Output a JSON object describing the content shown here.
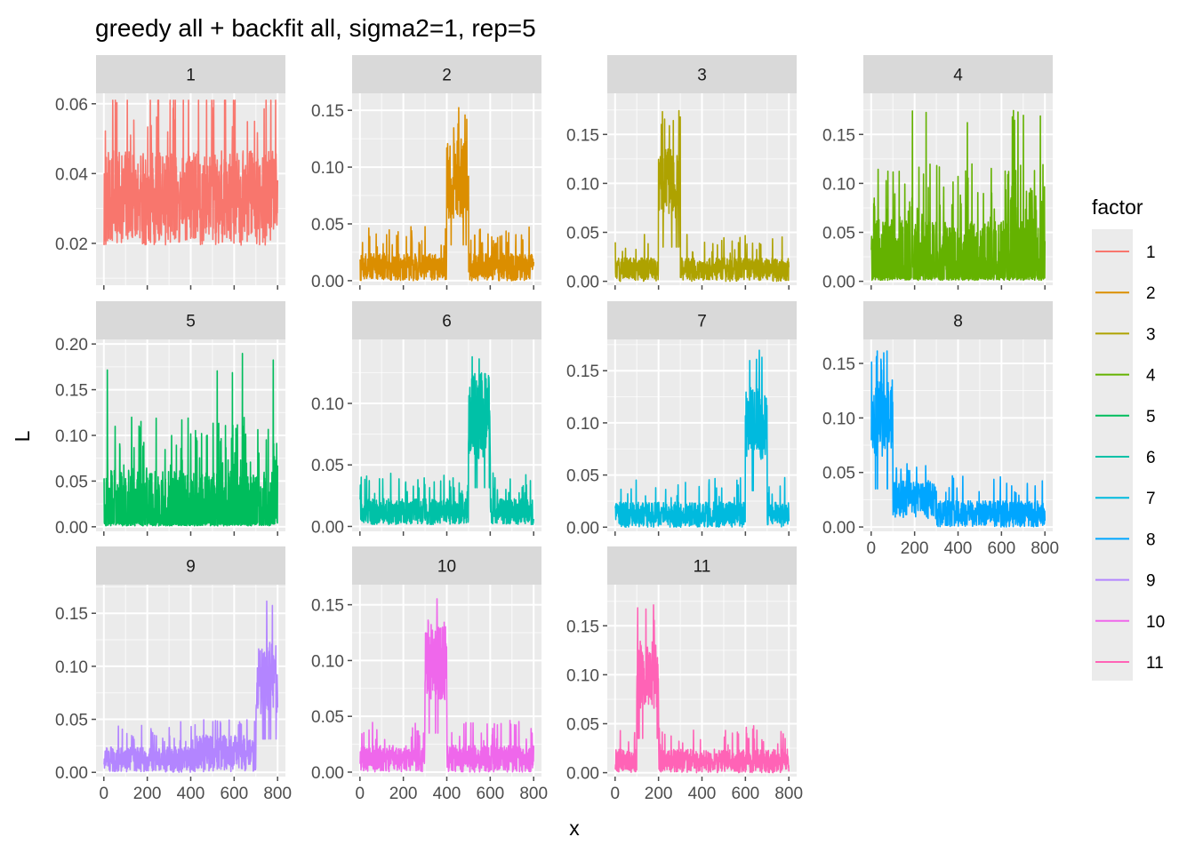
{
  "chart_data": {
    "type": "line",
    "title": "greedy all + backfit all, sigma2=1, rep=5",
    "xlabel": "x",
    "ylabel": "L",
    "x_range": [
      0,
      800
    ],
    "x_ticks": [
      "0",
      "200",
      "400",
      "600",
      "800"
    ],
    "grid": true,
    "legend": {
      "title": "factor",
      "position": "right"
    },
    "panels": [
      {
        "name": "1",
        "color": "#F8766D",
        "ylim": [
          0.008,
          0.063
        ],
        "y_ticks": [
          0.02,
          0.04,
          0.06
        ],
        "y_tick_labels": [
          "0.02",
          "0.04",
          "0.06"
        ],
        "baseline": 0.033,
        "noise": 0.009,
        "min": 0.008,
        "max": 0.061,
        "blocks": [],
        "spikes": false
      },
      {
        "name": "2",
        "color": "#DB8E00",
        "ylim": [
          -0.004,
          0.165
        ],
        "y_ticks": [
          0,
          0.05,
          0.1,
          0.15
        ],
        "y_tick_labels": [
          "0.00",
          "0.05",
          "0.10",
          "0.15"
        ],
        "baseline": 0.012,
        "noise": 0.008,
        "min": 0,
        "max": 0.157,
        "blocks": [
          {
            "start": 400,
            "end": 500,
            "level": 0.09,
            "max": 0.157
          }
        ],
        "spikes": false
      },
      {
        "name": "3",
        "color": "#AEA200",
        "ylim": [
          -0.004,
          0.192
        ],
        "y_ticks": [
          0,
          0.05,
          0.1,
          0.15
        ],
        "y_tick_labels": [
          "0.00",
          "0.05",
          "0.10",
          "0.15"
        ],
        "baseline": 0.012,
        "noise": 0.008,
        "min": 0,
        "max": 0.18,
        "blocks": [
          {
            "start": 200,
            "end": 300,
            "level": 0.1,
            "max": 0.18
          }
        ],
        "spikes": false
      },
      {
        "name": "4",
        "color": "#64B200",
        "ylim": [
          -0.004,
          0.192
        ],
        "y_ticks": [
          0,
          0.05,
          0.1,
          0.15
        ],
        "y_tick_labels": [
          "0.00",
          "0.05",
          "0.10",
          "0.15"
        ],
        "baseline": 0.02,
        "noise": 0.01,
        "min": 0,
        "max": 0.178,
        "blocks": [],
        "spikes": true
      },
      {
        "name": "5",
        "color": "#00BD5C",
        "ylim": [
          -0.005,
          0.205
        ],
        "y_ticks": [
          0,
          0.05,
          0.1,
          0.15,
          0.2
        ],
        "y_tick_labels": [
          "0.00",
          "0.05",
          "0.10",
          "0.15",
          "0.20"
        ],
        "baseline": 0.02,
        "noise": 0.01,
        "min": 0,
        "max": 0.195,
        "blocks": [],
        "spikes": true
      },
      {
        "name": "6",
        "color": "#00C1A7",
        "ylim": [
          -0.004,
          0.152
        ],
        "y_ticks": [
          0,
          0.05,
          0.1
        ],
        "y_tick_labels": [
          "0.00",
          "0.05",
          "0.10"
        ],
        "baseline": 0.012,
        "noise": 0.007,
        "min": 0,
        "max": 0.138,
        "blocks": [
          {
            "start": 500,
            "end": 600,
            "level": 0.09,
            "max": 0.138
          }
        ],
        "spikes": false
      },
      {
        "name": "7",
        "color": "#00BADE",
        "ylim": [
          -0.004,
          0.18
        ],
        "y_ticks": [
          0,
          0.05,
          0.1,
          0.15
        ],
        "y_tick_labels": [
          "0.00",
          "0.05",
          "0.10",
          "0.15"
        ],
        "baseline": 0.012,
        "noise": 0.008,
        "min": 0,
        "max": 0.17,
        "blocks": [
          {
            "start": 600,
            "end": 700,
            "level": 0.1,
            "max": 0.17
          }
        ],
        "spikes": false
      },
      {
        "name": "8",
        "color": "#00A6FF",
        "ylim": [
          -0.004,
          0.172
        ],
        "y_ticks": [
          0,
          0.05,
          0.1,
          0.15
        ],
        "y_tick_labels": [
          "0.00",
          "0.05",
          "0.10",
          "0.15"
        ],
        "baseline": 0.012,
        "noise": 0.008,
        "min": 0,
        "max": 0.165,
        "blocks": [
          {
            "start": 0,
            "end": 100,
            "level": 0.1,
            "max": 0.165
          },
          {
            "start": 100,
            "end": 300,
            "level": 0.025,
            "max": 0.06
          }
        ],
        "spikes": false
      },
      {
        "name": "9",
        "color": "#B385FF",
        "ylim": [
          -0.004,
          0.177
        ],
        "y_ticks": [
          0,
          0.05,
          0.1,
          0.15
        ],
        "y_tick_labels": [
          "0.00",
          "0.05",
          "0.10",
          "0.15"
        ],
        "baseline": 0.012,
        "noise": 0.008,
        "min": 0,
        "max": 0.168,
        "blocks": [
          {
            "start": 700,
            "end": 800,
            "level": 0.09,
            "max": 0.168
          },
          {
            "start": 400,
            "end": 700,
            "level": 0.018,
            "max": 0.05
          }
        ],
        "spikes": false
      },
      {
        "name": "10",
        "color": "#EF67EB",
        "ylim": [
          -0.004,
          0.168
        ],
        "y_ticks": [
          0,
          0.05,
          0.1,
          0.15
        ],
        "y_tick_labels": [
          "0.00",
          "0.05",
          "0.10",
          "0.15"
        ],
        "baseline": 0.012,
        "noise": 0.008,
        "min": 0,
        "max": 0.158,
        "blocks": [
          {
            "start": 300,
            "end": 400,
            "level": 0.1,
            "max": 0.158
          }
        ],
        "spikes": false
      },
      {
        "name": "11",
        "color": "#FF63B6",
        "ylim": [
          -0.004,
          0.192
        ],
        "y_ticks": [
          0,
          0.05,
          0.1,
          0.15
        ],
        "y_tick_labels": [
          "0.00",
          "0.05",
          "0.10",
          "0.15"
        ],
        "baseline": 0.012,
        "noise": 0.008,
        "min": 0,
        "max": 0.18,
        "blocks": [
          {
            "start": 100,
            "end": 200,
            "level": 0.1,
            "max": 0.18
          }
        ],
        "spikes": false
      }
    ]
  }
}
